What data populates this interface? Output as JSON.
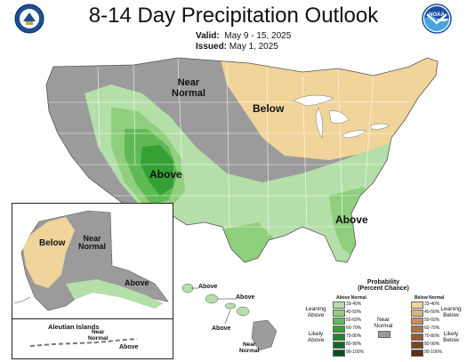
{
  "header": {
    "title": "8-14 Day Precipitation Outlook",
    "valid_label": "Valid:",
    "valid_value": "May 9 - 15, 2025",
    "issued_label": "Issued:",
    "issued_value": "May 1, 2025"
  },
  "logos": {
    "left": {
      "icon": "department-of-commerce-seal"
    },
    "right": {
      "icon": "noaa-logo",
      "text": "NOAA"
    }
  },
  "map_labels": {
    "near_normal": "Near\nNormal",
    "below_midwest": "Below",
    "above_southwest": "Above",
    "above_southeast": "Above"
  },
  "alaska": {
    "below": "Below",
    "near_normal": "Near\nNormal",
    "above": "Above"
  },
  "aleutians": {
    "title": "Aleutian Islands",
    "near_normal": "Near\nNormal",
    "above": "Above"
  },
  "hawaii": {
    "above_1": "Above",
    "above_2": "Above",
    "above_3": "Above",
    "near_normal": "Near\nNormal"
  },
  "legend": {
    "title": "Probability\n(Percent Chance)",
    "above_header": "Above Normal",
    "below_header": "Below Normal",
    "near_label": "Near\nNormal",
    "leaning_above": "Leaning\nAbove",
    "likely_above": "Likely\nAbove",
    "leaning_below": "Leaning\nBelow",
    "likely_below": "Likely\nBelow",
    "above_classes": [
      {
        "range": "33-40%",
        "color": "#b5dfa8"
      },
      {
        "range": "40-50%",
        "color": "#8fcf7d"
      },
      {
        "range": "50-60%",
        "color": "#5fba55"
      },
      {
        "range": "60-70%",
        "color": "#35a035"
      },
      {
        "range": "70-80%",
        "color": "#1f8530"
      },
      {
        "range": "80-90%",
        "color": "#136a28"
      },
      {
        "range": "90-100%",
        "color": "#0a4d1c"
      }
    ],
    "below_classes": [
      {
        "range": "33-40%",
        "color": "#f1d49a"
      },
      {
        "range": "40-50%",
        "color": "#dcb37a"
      },
      {
        "range": "50-60%",
        "color": "#c98f57"
      },
      {
        "range": "60-70%",
        "color": "#b6713e"
      },
      {
        "range": "70-80%",
        "color": "#9b5a30"
      },
      {
        "range": "80-90%",
        "color": "#7b4324"
      },
      {
        "range": "90-100%",
        "color": "#5a2f18"
      }
    ],
    "near_color": "#9b9b9b"
  },
  "colors": {
    "near_normal": "#9b9b9b",
    "below_33_40": "#f1d49a",
    "above_33_40": "#b5dfa8",
    "above_40_50": "#8fcf7d",
    "above_50_60": "#5fba55",
    "above_60_70": "#35a035",
    "border": "#ffffff",
    "water": "#ffffff"
  }
}
